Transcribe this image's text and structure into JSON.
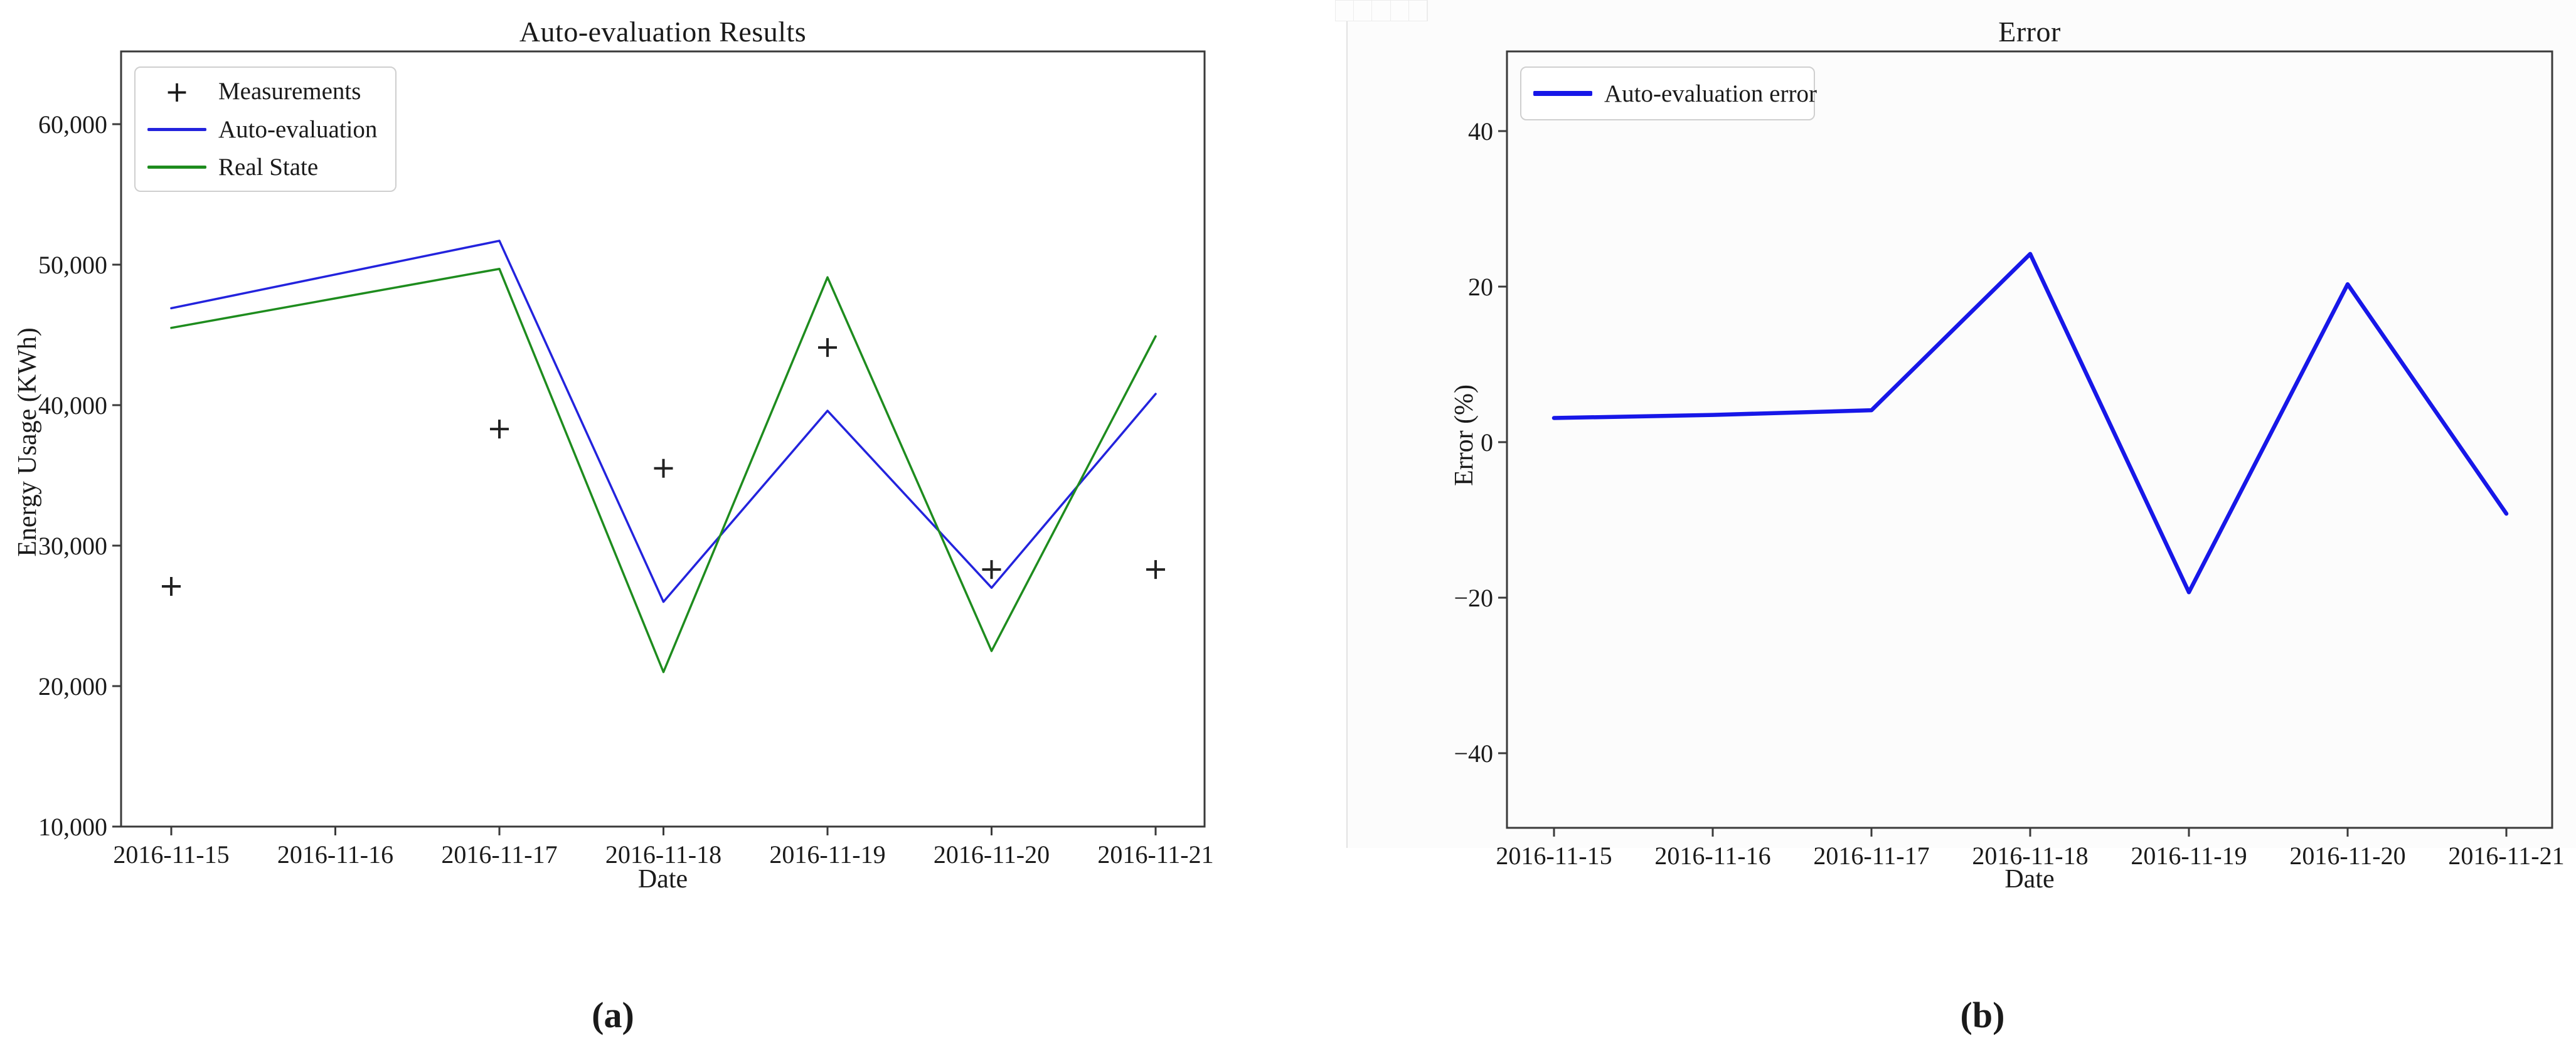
{
  "figure": {
    "panel_a_label": "(a)",
    "panel_b_label": "(b)"
  },
  "chart_data": [
    {
      "type": "line",
      "title": "Auto-evaluation Results",
      "xlabel": "Date",
      "ylabel": "Energy Usage (KWh)",
      "legend_position": "upper left",
      "grid": false,
      "categories": [
        "2016-11-15",
        "2016-11-16",
        "2016-11-17",
        "2016-11-18",
        "2016-11-19",
        "2016-11-20",
        "2016-11-21"
      ],
      "ylim": [
        10000,
        65200
      ],
      "yticks": {
        "values": [
          10000,
          20000,
          30000,
          40000,
          50000,
          60000
        ],
        "labels": [
          "10,000",
          "20,000",
          "30,000",
          "40,000",
          "50,000",
          "60,000"
        ]
      },
      "series": [
        {
          "name": "Measurements",
          "type": "scatter",
          "marker": "+",
          "color": "#222222",
          "values": [
            27100,
            null,
            38300,
            35500,
            44100,
            28300,
            28300
          ]
        },
        {
          "name": "Auto-evaluation",
          "type": "line",
          "color": "#2323dd",
          "values": [
            46900,
            49300,
            51700,
            26000,
            39600,
            27000,
            40800
          ]
        },
        {
          "name": "Real State",
          "type": "line",
          "color": "#1e8c1e",
          "values": [
            45500,
            47600,
            49700,
            21000,
            49100,
            22500,
            44900
          ]
        }
      ]
    },
    {
      "type": "line",
      "title": "Error",
      "xlabel": "Date",
      "ylabel": "Error (%)",
      "legend_position": "upper left",
      "grid": false,
      "categories": [
        "2016-11-15",
        "2016-11-16",
        "2016-11-17",
        "2016-11-18",
        "2016-11-19",
        "2016-11-20",
        "2016-11-21"
      ],
      "ylim": [
        -49.6,
        50.2
      ],
      "yticks": {
        "values": [
          -40,
          -20,
          0,
          20,
          40
        ],
        "labels": [
          "−40",
          "−20",
          "0",
          "20",
          "40"
        ]
      },
      "series": [
        {
          "name": "Auto-evaluation error",
          "type": "line",
          "color": "#1717e8",
          "linewidth": 6.5,
          "values": [
            3.1,
            3.5,
            4.1,
            24.2,
            -19.3,
            20.3,
            -9.2
          ]
        }
      ]
    }
  ]
}
